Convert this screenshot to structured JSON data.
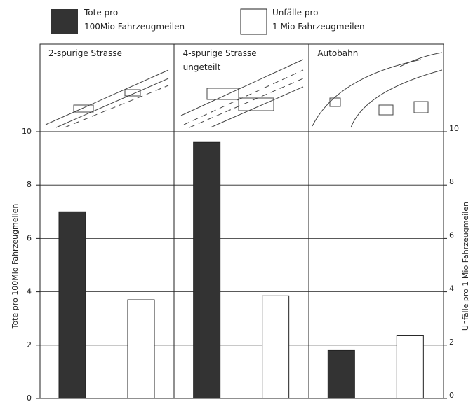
{
  "chart_data": {
    "type": "bar",
    "categories": [
      "2-spurige Strasse",
      "4-spurige Strasse\nungeteilt",
      "Autobahn"
    ],
    "series": [
      {
        "name": "Tote pro\n100Mio Fahrzeugmeilen",
        "color": "#333333",
        "values": [
          7.0,
          9.6,
          1.8
        ]
      },
      {
        "name": "Unfälle pro\n1 Mio Fahrzeugmeilen",
        "color": "#ffffff",
        "values": [
          3.7,
          3.85,
          2.35
        ],
        "axis": "y2"
      }
    ],
    "y_label": "Tote pro 100Mio Fahrzeugmeilen",
    "y2_label": "Unfälle pro   1 Mio Fahrzeugmeilen",
    "ylim": [
      0,
      10
    ],
    "yticks": [
      0,
      2,
      4,
      6,
      8,
      10
    ],
    "y2lim": [
      0,
      10
    ],
    "y2ticks": [
      0,
      2,
      4,
      6,
      8,
      10
    ],
    "grid": true
  }
}
